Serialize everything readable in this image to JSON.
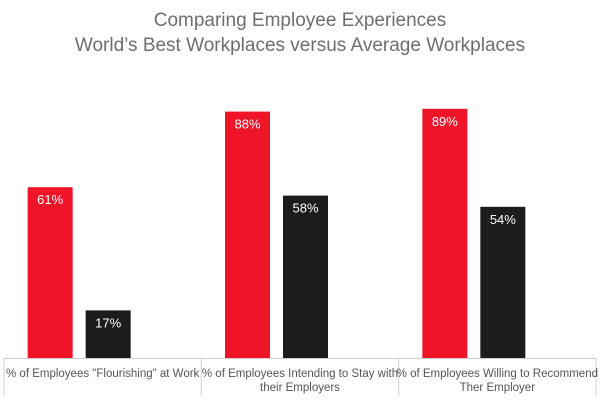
{
  "chart_data": {
    "type": "bar",
    "title": "Comparing Employee Experiences",
    "subtitle": "World’s Best Workplaces versus Average Workplaces",
    "categories": [
      [
        "% of Employees \"Flourishing\" at Work"
      ],
      [
        "% of Employees Intending to Stay with",
        "their Employers"
      ],
      [
        "% of Employees Willing to Recommend",
        "Ther Employer"
      ]
    ],
    "series": [
      {
        "values": [
          61,
          88,
          89
        ],
        "labels": [
          "61%",
          "88%",
          "89%"
        ],
        "color": "#f01428"
      },
      {
        "values": [
          17,
          58,
          54
        ],
        "labels": [
          "17%",
          "58%",
          "54%"
        ],
        "color": "#1c1c1c"
      }
    ],
    "ylim": [
      0,
      100
    ],
    "grid": false,
    "xlabel": "",
    "ylabel": ""
  }
}
